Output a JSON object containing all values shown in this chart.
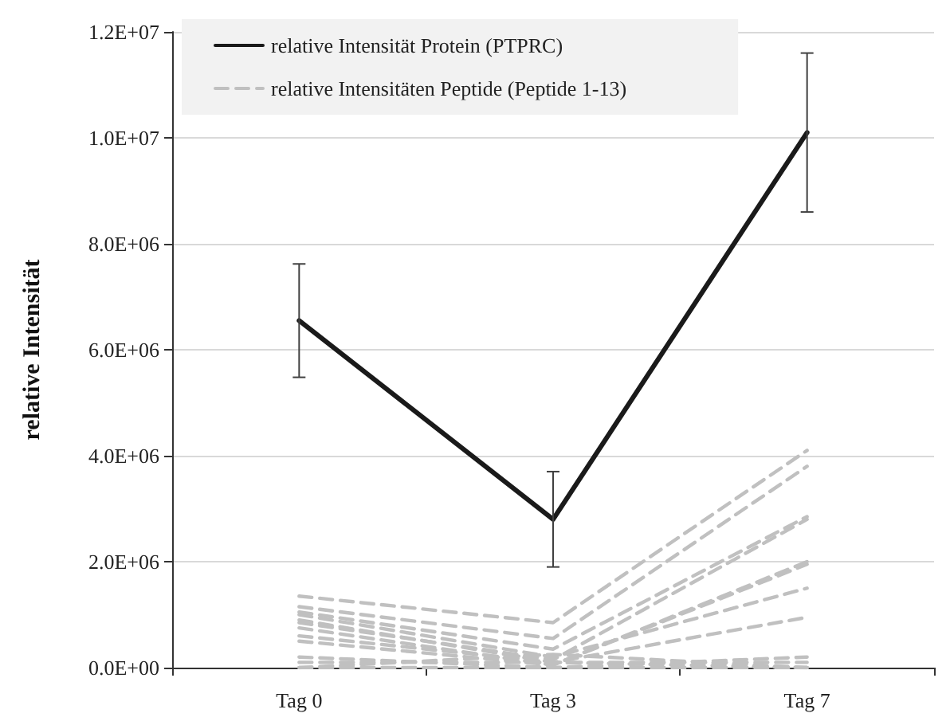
{
  "chart_data": {
    "type": "line",
    "ylabel": "relative Intensität",
    "categories": [
      "Tag 0",
      "Tag 3",
      "Tag 7"
    ],
    "ylim": [
      0,
      12000000
    ],
    "yticks": [
      {
        "value": 0,
        "label": "0.0E+00"
      },
      {
        "value": 2000000,
        "label": "2.0E+06"
      },
      {
        "value": 4000000,
        "label": "4.0E+06"
      },
      {
        "value": 6000000,
        "label": "6.0E+06"
      },
      {
        "value": 8000000,
        "label": "8.0E+06"
      },
      {
        "value": 10000000,
        "label": "1.0E+07"
      },
      {
        "value": 12000000,
        "label": "1.2E+07"
      }
    ],
    "grid": "y",
    "legend": "top left",
    "marker": "none",
    "series": [
      {
        "name": "relative Intensitäten Peptide (Peptide 1-13)",
        "color": "#c0c0c0",
        "line_style": "dashed",
        "values": [
          1350000,
          850000,
          4100000
        ]
      },
      {
        "color": "#c0c0c0",
        "line_style": "dashed",
        "values": [
          1150000,
          550000,
          3800000
        ]
      },
      {
        "color": "#c0c0c0",
        "line_style": "dashed",
        "values": [
          1050000,
          350000,
          2850000
        ]
      },
      {
        "color": "#c0c0c0",
        "line_style": "dashed",
        "values": [
          850000,
          150000,
          2800000
        ]
      },
      {
        "color": "#c0c0c0",
        "line_style": "dashed",
        "values": [
          750000,
          50000,
          2000000
        ]
      },
      {
        "color": "#c0c0c0",
        "line_style": "dashed",
        "values": [
          500000,
          50000,
          1950000
        ]
      },
      {
        "color": "#c0c0c0",
        "line_style": "dashed",
        "values": [
          1000000,
          200000,
          1500000
        ]
      },
      {
        "color": "#c0c0c0",
        "line_style": "dashed",
        "values": [
          900000,
          100000,
          950000
        ]
      },
      {
        "color": "#c0c0c0",
        "line_style": "dashed",
        "values": [
          100000,
          100000,
          100000
        ]
      },
      {
        "color": "#c0c0c0",
        "line_style": "dashed",
        "values": [
          0,
          0,
          0
        ]
      },
      {
        "color": "#c0c0c0",
        "line_style": "dashed",
        "values": [
          200000,
          0,
          200000
        ]
      },
      {
        "color": "#c0c0c0",
        "line_style": "dashed",
        "values": [
          600000,
          100000,
          0
        ]
      },
      {
        "color": "#c0c0c0",
        "line_style": "dashed",
        "values": [
          0,
          250000,
          0
        ]
      },
      {
        "name": "relative Intensität Protein (PTPRC)",
        "color": "#1a1a1a",
        "line_style": "solid",
        "values": [
          6550000,
          2800000,
          10100000
        ],
        "errors": [
          1070000,
          900000,
          1500000
        ]
      }
    ]
  }
}
